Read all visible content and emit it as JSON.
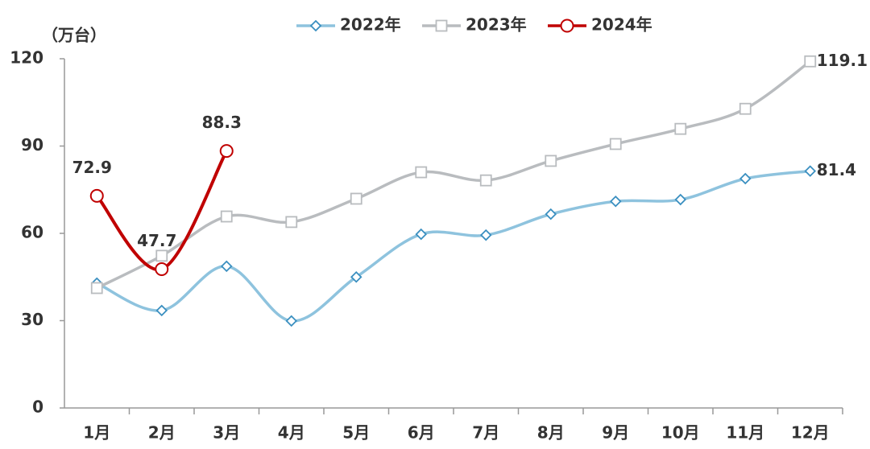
{
  "chart_data": {
    "type": "line",
    "y_label": "（万台）",
    "categories": [
      "1月",
      "2月",
      "3月",
      "4月",
      "5月",
      "6月",
      "7月",
      "8月",
      "9月",
      "10月",
      "11月",
      "12月"
    ],
    "series": [
      {
        "name": "2022年",
        "color": "#8ec3de",
        "marker": "diamond",
        "marker_color": "#3a8fc0",
        "labels": "last",
        "label_position": "right",
        "values": [
          42.9,
          33.5,
          48.7,
          29.9,
          45,
          59.7,
          59.4,
          66.6,
          71,
          71.6,
          78.8,
          81.4
        ]
      },
      {
        "name": "2023年",
        "color": "#b9bcbf",
        "marker": "square",
        "marker_color": "#b9bcbf",
        "labels": "last",
        "label_position": "right",
        "values": [
          41.2,
          52.3,
          65.8,
          63.9,
          71.9,
          81,
          78.2,
          84.9,
          90.7,
          95.9,
          102.8,
          119.1
        ]
      },
      {
        "name": "2024年",
        "color": "#c00000",
        "marker": "circle",
        "marker_color": "#c00000",
        "labels": "all",
        "label_position": "above",
        "values": [
          72.9,
          47.7,
          88.3,
          null,
          null,
          null,
          null,
          null,
          null,
          null,
          null,
          null
        ]
      }
    ],
    "ylim": [
      0,
      120
    ],
    "yticks": [
      0,
      30,
      60,
      90,
      120
    ],
    "grid": false
  }
}
